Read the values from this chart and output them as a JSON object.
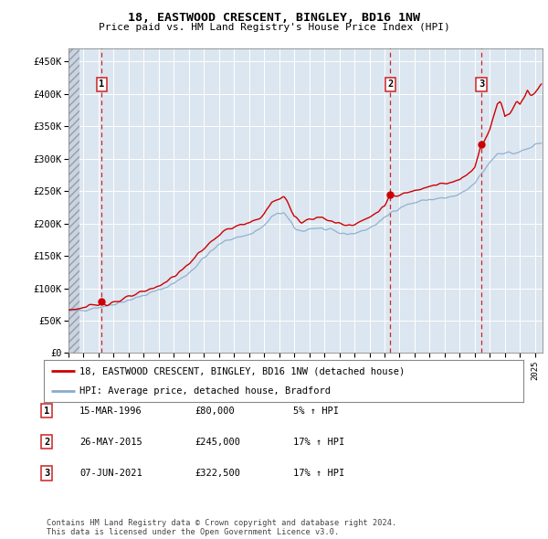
{
  "title": "18, EASTWOOD CRESCENT, BINGLEY, BD16 1NW",
  "subtitle": "Price paid vs. HM Land Registry's House Price Index (HPI)",
  "ylabel_ticks": [
    "£0",
    "£50K",
    "£100K",
    "£150K",
    "£200K",
    "£250K",
    "£300K",
    "£350K",
    "£400K",
    "£450K"
  ],
  "ylabel_values": [
    0,
    50000,
    100000,
    150000,
    200000,
    250000,
    300000,
    350000,
    400000,
    450000
  ],
  "ylim": [
    0,
    470000
  ],
  "xlim_start": 1994.0,
  "xlim_end": 2025.5,
  "sale_dates": [
    1996.21,
    2015.39,
    2021.43
  ],
  "sale_prices": [
    80000,
    245000,
    322500
  ],
  "sale_labels": [
    "1",
    "2",
    "3"
  ],
  "property_color": "#cc0000",
  "hpi_color": "#88aacc",
  "annotation_line_color": "#cc0000",
  "background_color": "#dce6f0",
  "legend_label_property": "18, EASTWOOD CRESCENT, BINGLEY, BD16 1NW (detached house)",
  "legend_label_hpi": "HPI: Average price, detached house, Bradford",
  "table_rows": [
    [
      "1",
      "15-MAR-1996",
      "£80,000",
      "5% ↑ HPI"
    ],
    [
      "2",
      "26-MAY-2015",
      "£245,000",
      "17% ↑ HPI"
    ],
    [
      "3",
      "07-JUN-2021",
      "£322,500",
      "17% ↑ HPI"
    ]
  ],
  "footnote": "Contains HM Land Registry data © Crown copyright and database right 2024.\nThis data is licensed under the Open Government Licence v3.0."
}
